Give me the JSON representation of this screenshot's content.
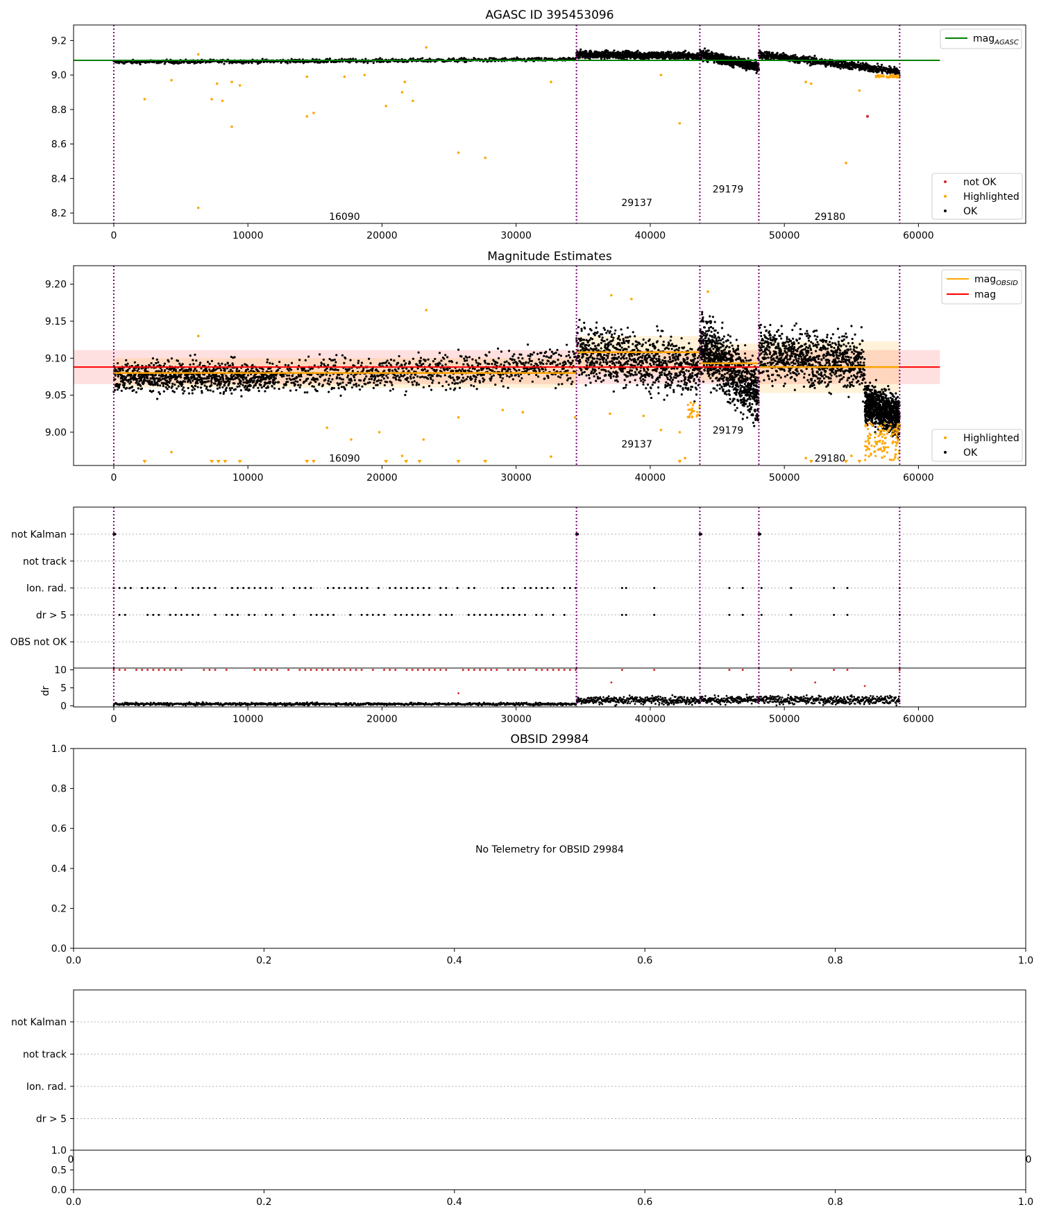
{
  "colors": {
    "ok": "#000000",
    "not_ok": "#d62728",
    "highlighted": "#ffa500",
    "mag_agasc": "#008000",
    "mag_obsid": "#ffa500",
    "mag": "#ff0000",
    "obsid_boundary": "#800080"
  },
  "chart_data": [
    {
      "type": "scatter",
      "title": "AGASC ID 395453096",
      "xlim": [
        -3000,
        68000
      ],
      "ylim": [
        8.14,
        9.29
      ],
      "xticks": [
        "0",
        "10000",
        "20000",
        "30000",
        "40000",
        "50000",
        "60000"
      ],
      "yticks": [
        "8.2",
        "8.4",
        "8.6",
        "8.8",
        "9.0",
        "9.2"
      ],
      "obsid_boundaries": [
        0,
        34500,
        43700,
        48100,
        58600
      ],
      "obsid_labels": [
        {
          "label": "16090",
          "x": 17200,
          "y": 8.18
        },
        {
          "label": "29137",
          "x": 39000,
          "y": 8.26
        },
        {
          "label": "29179",
          "x": 45800,
          "y": 8.34
        },
        {
          "label": "29180",
          "x": 53400,
          "y": 8.18
        }
      ],
      "lines": [
        {
          "name": "mag_AGASC",
          "name_main": "mag",
          "name_sub": "AGASC",
          "y": 9.085,
          "x": [
            -3000,
            61600
          ]
        }
      ],
      "ok_segments": [
        {
          "x": [
            0,
            34500
          ],
          "y_start": 9.075,
          "y_end": 9.09,
          "spread": 0.012
        },
        {
          "x": [
            34500,
            43700
          ],
          "y_start": 9.12,
          "y_end": 9.11,
          "spread": 0.025
        },
        {
          "x": [
            43700,
            48100
          ],
          "y_start": 9.12,
          "y_end": 9.045,
          "spread": 0.03
        },
        {
          "x": [
            48100,
            58600
          ],
          "y_start": 9.12,
          "y_end": 9.02,
          "spread": 0.025
        }
      ],
      "highlighted_points": [
        [
          2300,
          8.86
        ],
        [
          4300,
          8.97
        ],
        [
          6300,
          8.23
        ],
        [
          7300,
          8.86
        ],
        [
          7700,
          8.95
        ],
        [
          8100,
          8.85
        ],
        [
          8800,
          8.7
        ],
        [
          8800,
          8.96
        ],
        [
          9400,
          8.94
        ],
        [
          14400,
          8.76
        ],
        [
          14900,
          8.78
        ],
        [
          14400,
          8.99
        ],
        [
          17200,
          8.99
        ],
        [
          18700,
          9.0
        ],
        [
          20300,
          8.82
        ],
        [
          21500,
          8.9
        ],
        [
          21700,
          8.96
        ],
        [
          22300,
          8.85
        ],
        [
          23300,
          9.16
        ],
        [
          25700,
          8.55
        ],
        [
          27700,
          8.52
        ],
        [
          32600,
          8.96
        ],
        [
          42200,
          8.72
        ],
        [
          51600,
          8.96
        ],
        [
          52000,
          8.95
        ],
        [
          54600,
          8.49
        ],
        [
          55600,
          8.91
        ],
        [
          40800,
          9.0
        ],
        [
          6300,
          9.12
        ]
      ],
      "not_ok_points": [
        [
          56200,
          8.76
        ]
      ],
      "legend": [
        {
          "name": "not OK",
          "kind": "not_ok"
        },
        {
          "name": "Highlighted",
          "kind": "highlighted"
        },
        {
          "name": "OK",
          "kind": "ok"
        }
      ]
    },
    {
      "type": "scatter",
      "title": "Magnitude Estimates",
      "xlim": [
        -3000,
        68000
      ],
      "ylim": [
        8.955,
        9.225
      ],
      "xticks": [
        "0",
        "10000",
        "20000",
        "30000",
        "40000",
        "50000",
        "60000"
      ],
      "yticks": [
        "9.00",
        "9.05",
        "9.10",
        "9.15",
        "9.20"
      ],
      "obsid_boundaries": [
        0,
        34500,
        43700,
        48100,
        58600
      ],
      "obsid_labels": [
        {
          "label": "16090",
          "x": 17200,
          "y": 8.965
        },
        {
          "label": "29137",
          "x": 39000,
          "y": 8.984
        },
        {
          "label": "29179",
          "x": 45800,
          "y": 9.003
        },
        {
          "label": "29180",
          "x": 53400,
          "y": 8.965
        }
      ],
      "mag": {
        "name": "mag",
        "y": 9.088,
        "band": [
          9.065,
          9.111
        ],
        "x": [
          -3000,
          61600
        ]
      },
      "mag_obsid": [
        {
          "x": [
            0,
            34500
          ],
          "y": 9.08,
          "band": [
            9.06,
            9.1
          ]
        },
        {
          "x": [
            34500,
            43700
          ],
          "y": 9.108,
          "band": [
            9.08,
            9.13
          ]
        },
        {
          "x": [
            43700,
            48100
          ],
          "y": 9.093,
          "band": [
            9.07,
            9.12
          ]
        },
        {
          "x": [
            48100,
            58600
          ],
          "y": 9.088,
          "band": [
            9.053,
            9.123
          ]
        }
      ],
      "ok_segments": [
        {
          "x": [
            0,
            12000
          ],
          "y_start": 9.075,
          "y_end": 9.075,
          "spread": 0.022
        },
        {
          "x": [
            12000,
            34500
          ],
          "y_start": 9.075,
          "y_end": 9.09,
          "spread": 0.025
        },
        {
          "x": [
            34500,
            43700
          ],
          "y_start": 9.11,
          "y_end": 9.085,
          "spread": 0.04
        },
        {
          "x": [
            43700,
            48100
          ],
          "y_start": 9.12,
          "y_end": 9.05,
          "spread": 0.045
        },
        {
          "x": [
            48100,
            56000
          ],
          "y_start": 9.11,
          "y_end": 9.09,
          "spread": 0.04
        },
        {
          "x": [
            56000,
            58600
          ],
          "y_start": 9.04,
          "y_end": 9.02,
          "spread": 0.03
        }
      ],
      "highlighted_points": [
        [
          6300,
          9.13
        ],
        [
          23300,
          9.165
        ],
        [
          37100,
          9.185
        ],
        [
          38600,
          9.18
        ],
        [
          44300,
          9.19
        ],
        [
          4300,
          8.973
        ],
        [
          15900,
          9.006
        ],
        [
          17700,
          8.99
        ],
        [
          19800,
          9.0
        ],
        [
          23100,
          8.99
        ],
        [
          25700,
          9.02
        ],
        [
          29000,
          9.03
        ],
        [
          30500,
          9.027
        ],
        [
          32600,
          8.967
        ],
        [
          34400,
          9.02
        ],
        [
          37000,
          9.025
        ],
        [
          39500,
          9.022
        ],
        [
          40800,
          9.003
        ],
        [
          42200,
          9.0
        ],
        [
          42600,
          8.965
        ],
        [
          51600,
          8.965
        ],
        [
          55000,
          8.968
        ],
        [
          21500,
          8.968
        ]
      ],
      "triangle_points_x": [
        2300,
        7300,
        7800,
        8300,
        9400,
        14400,
        14900,
        20300,
        21800,
        22800,
        25700,
        27700,
        42200,
        52000,
        54600,
        55600
      ],
      "legend": [
        {
          "name": "Highlighted",
          "kind": "highlighted"
        },
        {
          "name": "OK",
          "kind": "ok"
        }
      ],
      "line_legend": [
        {
          "name_main": "mag",
          "name_sub": "OBSID",
          "kind": "mag_obsid"
        },
        {
          "name_main": "mag",
          "name_sub": "",
          "kind": "mag"
        }
      ]
    },
    {
      "type": "scatter",
      "title": "",
      "xlim": [
        -3000,
        68000
      ],
      "categories": [
        "not Kalman",
        "not track",
        "Ion. rad.",
        "dr > 5",
        "OBS not OK"
      ],
      "flags": {
        "not Kalman": [
          0,
          34500,
          43700,
          48100
        ],
        "Ion. rad.": "dense_0_34500_plus_sparse",
        "dr > 5": "dense_0_34500_plus_sparse"
      },
      "sparse_flag_x": [
        37900,
        38200,
        40300,
        45900,
        46900,
        48300,
        50500,
        53700,
        54700,
        58600
      ],
      "obsid_boundaries": [
        0,
        34500,
        43700,
        48100,
        58600
      ]
    },
    {
      "type": "scatter",
      "title": "",
      "ylabel": "dr",
      "xlim": [
        -3000,
        68000
      ],
      "ylim": [
        -0.3,
        10.5
      ],
      "xticks": [
        "0",
        "10000",
        "20000",
        "30000",
        "40000",
        "50000",
        "60000"
      ],
      "yticks": [
        "0",
        "5",
        "10"
      ],
      "dr_segments": [
        {
          "x": [
            0,
            34500
          ],
          "y": 0.5
        },
        {
          "x": [
            34500,
            58600
          ],
          "y": 1.6
        }
      ],
      "red_at_10_sparse_x": [
        37900,
        40300,
        45900,
        46900,
        50500,
        53700,
        54700,
        58600
      ],
      "obsid_boundaries": [
        0,
        34500,
        43700,
        48100,
        58600
      ]
    },
    {
      "type": "scatter",
      "title": "OBSID 29984",
      "xlim": [
        0,
        1
      ],
      "ylim": [
        0,
        1
      ],
      "xticks": [
        "0.0",
        "0.2",
        "0.4",
        "0.6",
        "0.8",
        "1.0"
      ],
      "yticks": [
        "0.0",
        "0.2",
        "0.4",
        "0.6",
        "0.8",
        "1.0"
      ],
      "message": "No Telemetry for OBSID 29984"
    },
    {
      "type": "scatter",
      "title": "",
      "xlim": [
        0,
        1
      ],
      "categories": [
        "not Kalman",
        "not track",
        "Ion. rad.",
        "dr > 5"
      ],
      "xticks_partial": [
        "0",
        "0"
      ]
    },
    {
      "type": "scatter",
      "title": "",
      "xlim": [
        0,
        1
      ],
      "ylim": [
        0,
        1
      ],
      "xticks": [
        "0.0",
        "0.2",
        "0.4",
        "0.6",
        "0.8",
        "1.0"
      ],
      "yticks": [
        "0.0",
        "0.5",
        "1.0"
      ]
    }
  ]
}
